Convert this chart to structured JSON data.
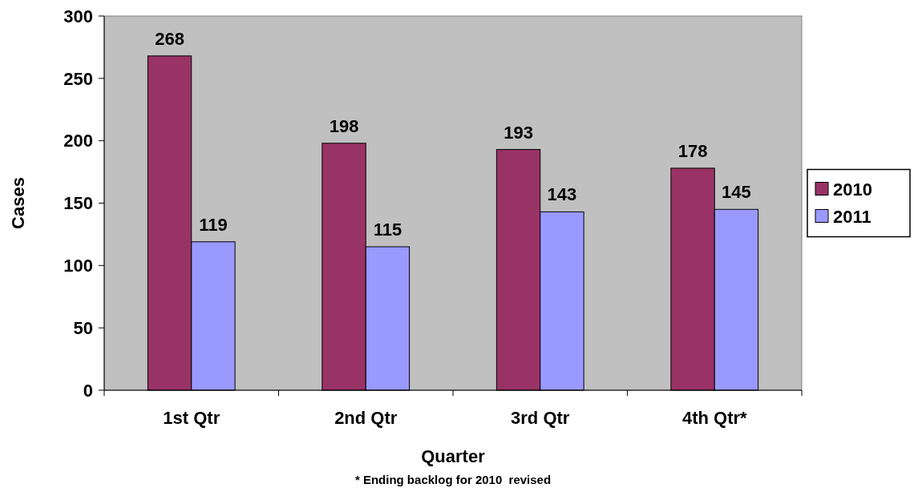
{
  "chart_data": {
    "type": "bar",
    "xlabel": "Quarter",
    "ylabel": "Cases",
    "categories": [
      "1st Qtr",
      "2nd Qtr",
      "3rd Qtr",
      "4th Qtr*"
    ],
    "series": [
      {
        "name": "2010",
        "color": "#993366",
        "values": [
          268,
          198,
          193,
          178
        ]
      },
      {
        "name": "2011",
        "color": "#9999ff",
        "values": [
          119,
          115,
          143,
          145
        ]
      }
    ],
    "ylim": [
      0,
      300
    ],
    "yticks": [
      0,
      50,
      100,
      150,
      200,
      250,
      300
    ],
    "grid": false,
    "legend": "right",
    "data_labels": true,
    "annotations": [
      "* Ending backlog for 2010  revised"
    ]
  }
}
